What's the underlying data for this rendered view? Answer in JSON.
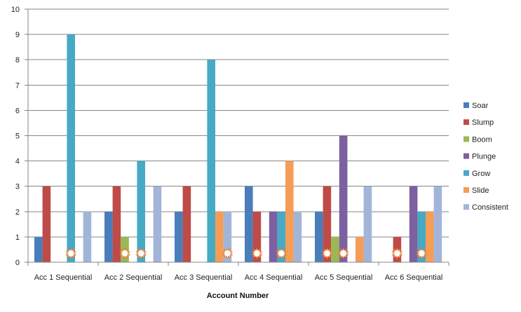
{
  "chart_data": {
    "type": "bar",
    "title": "",
    "xlabel": "Account Number",
    "ylabel": "",
    "ylim": [
      0,
      10
    ],
    "y_ticks": [
      0,
      1,
      2,
      3,
      4,
      5,
      6,
      7,
      8,
      9,
      10
    ],
    "grid": "horizontal",
    "legend_position": "right",
    "categories": [
      "Acc 1 Sequential",
      "Acc 2 Sequential",
      "Acc 3 Sequential",
      "Acc 4 Sequential",
      "Acc 5 Sequential",
      "Acc 6 Sequential"
    ],
    "series": [
      {
        "name": "Soar",
        "color": "#4a7ebb",
        "values": [
          1,
          2,
          2,
          3,
          2,
          0
        ]
      },
      {
        "name": "Slump",
        "color": "#be4b48",
        "values": [
          3,
          3,
          3,
          2,
          3,
          1
        ]
      },
      {
        "name": "Boom",
        "color": "#98b954",
        "values": [
          0,
          1,
          0,
          0,
          1,
          0
        ]
      },
      {
        "name": "Plunge",
        "color": "#7d60a0",
        "values": [
          0,
          0,
          0,
          2,
          5,
          3
        ]
      },
      {
        "name": "Grow",
        "color": "#46aac5",
        "values": [
          9,
          4,
          8,
          2,
          0,
          2
        ]
      },
      {
        "name": "Slide",
        "color": "#f59d56",
        "values": [
          0,
          0,
          2,
          4,
          1,
          2
        ]
      },
      {
        "name": "Consistent",
        "color": "#a2b5d8",
        "values": [
          2,
          3,
          2,
          2,
          3,
          3
        ]
      }
    ],
    "burst_markers": [
      {
        "category": "Acc 1 Sequential",
        "series": "Grow"
      },
      {
        "category": "Acc 2 Sequential",
        "series": "Boom"
      },
      {
        "category": "Acc 2 Sequential",
        "series": "Grow"
      },
      {
        "category": "Acc 3 Sequential",
        "series": "Consistent"
      },
      {
        "category": "Acc 4 Sequential",
        "series": "Slump"
      },
      {
        "category": "Acc 4 Sequential",
        "series": "Grow"
      },
      {
        "category": "Acc 5 Sequential",
        "series": "Slump"
      },
      {
        "category": "Acc 5 Sequential",
        "series": "Plunge"
      },
      {
        "category": "Acc 6 Sequential",
        "series": "Slump"
      },
      {
        "category": "Acc 6 Sequential",
        "series": "Grow"
      }
    ],
    "burst_style": {
      "fill": "#ffffff",
      "stroke": "#f0782a"
    },
    "axis_color": "#868686",
    "grid_color": "#868686"
  }
}
